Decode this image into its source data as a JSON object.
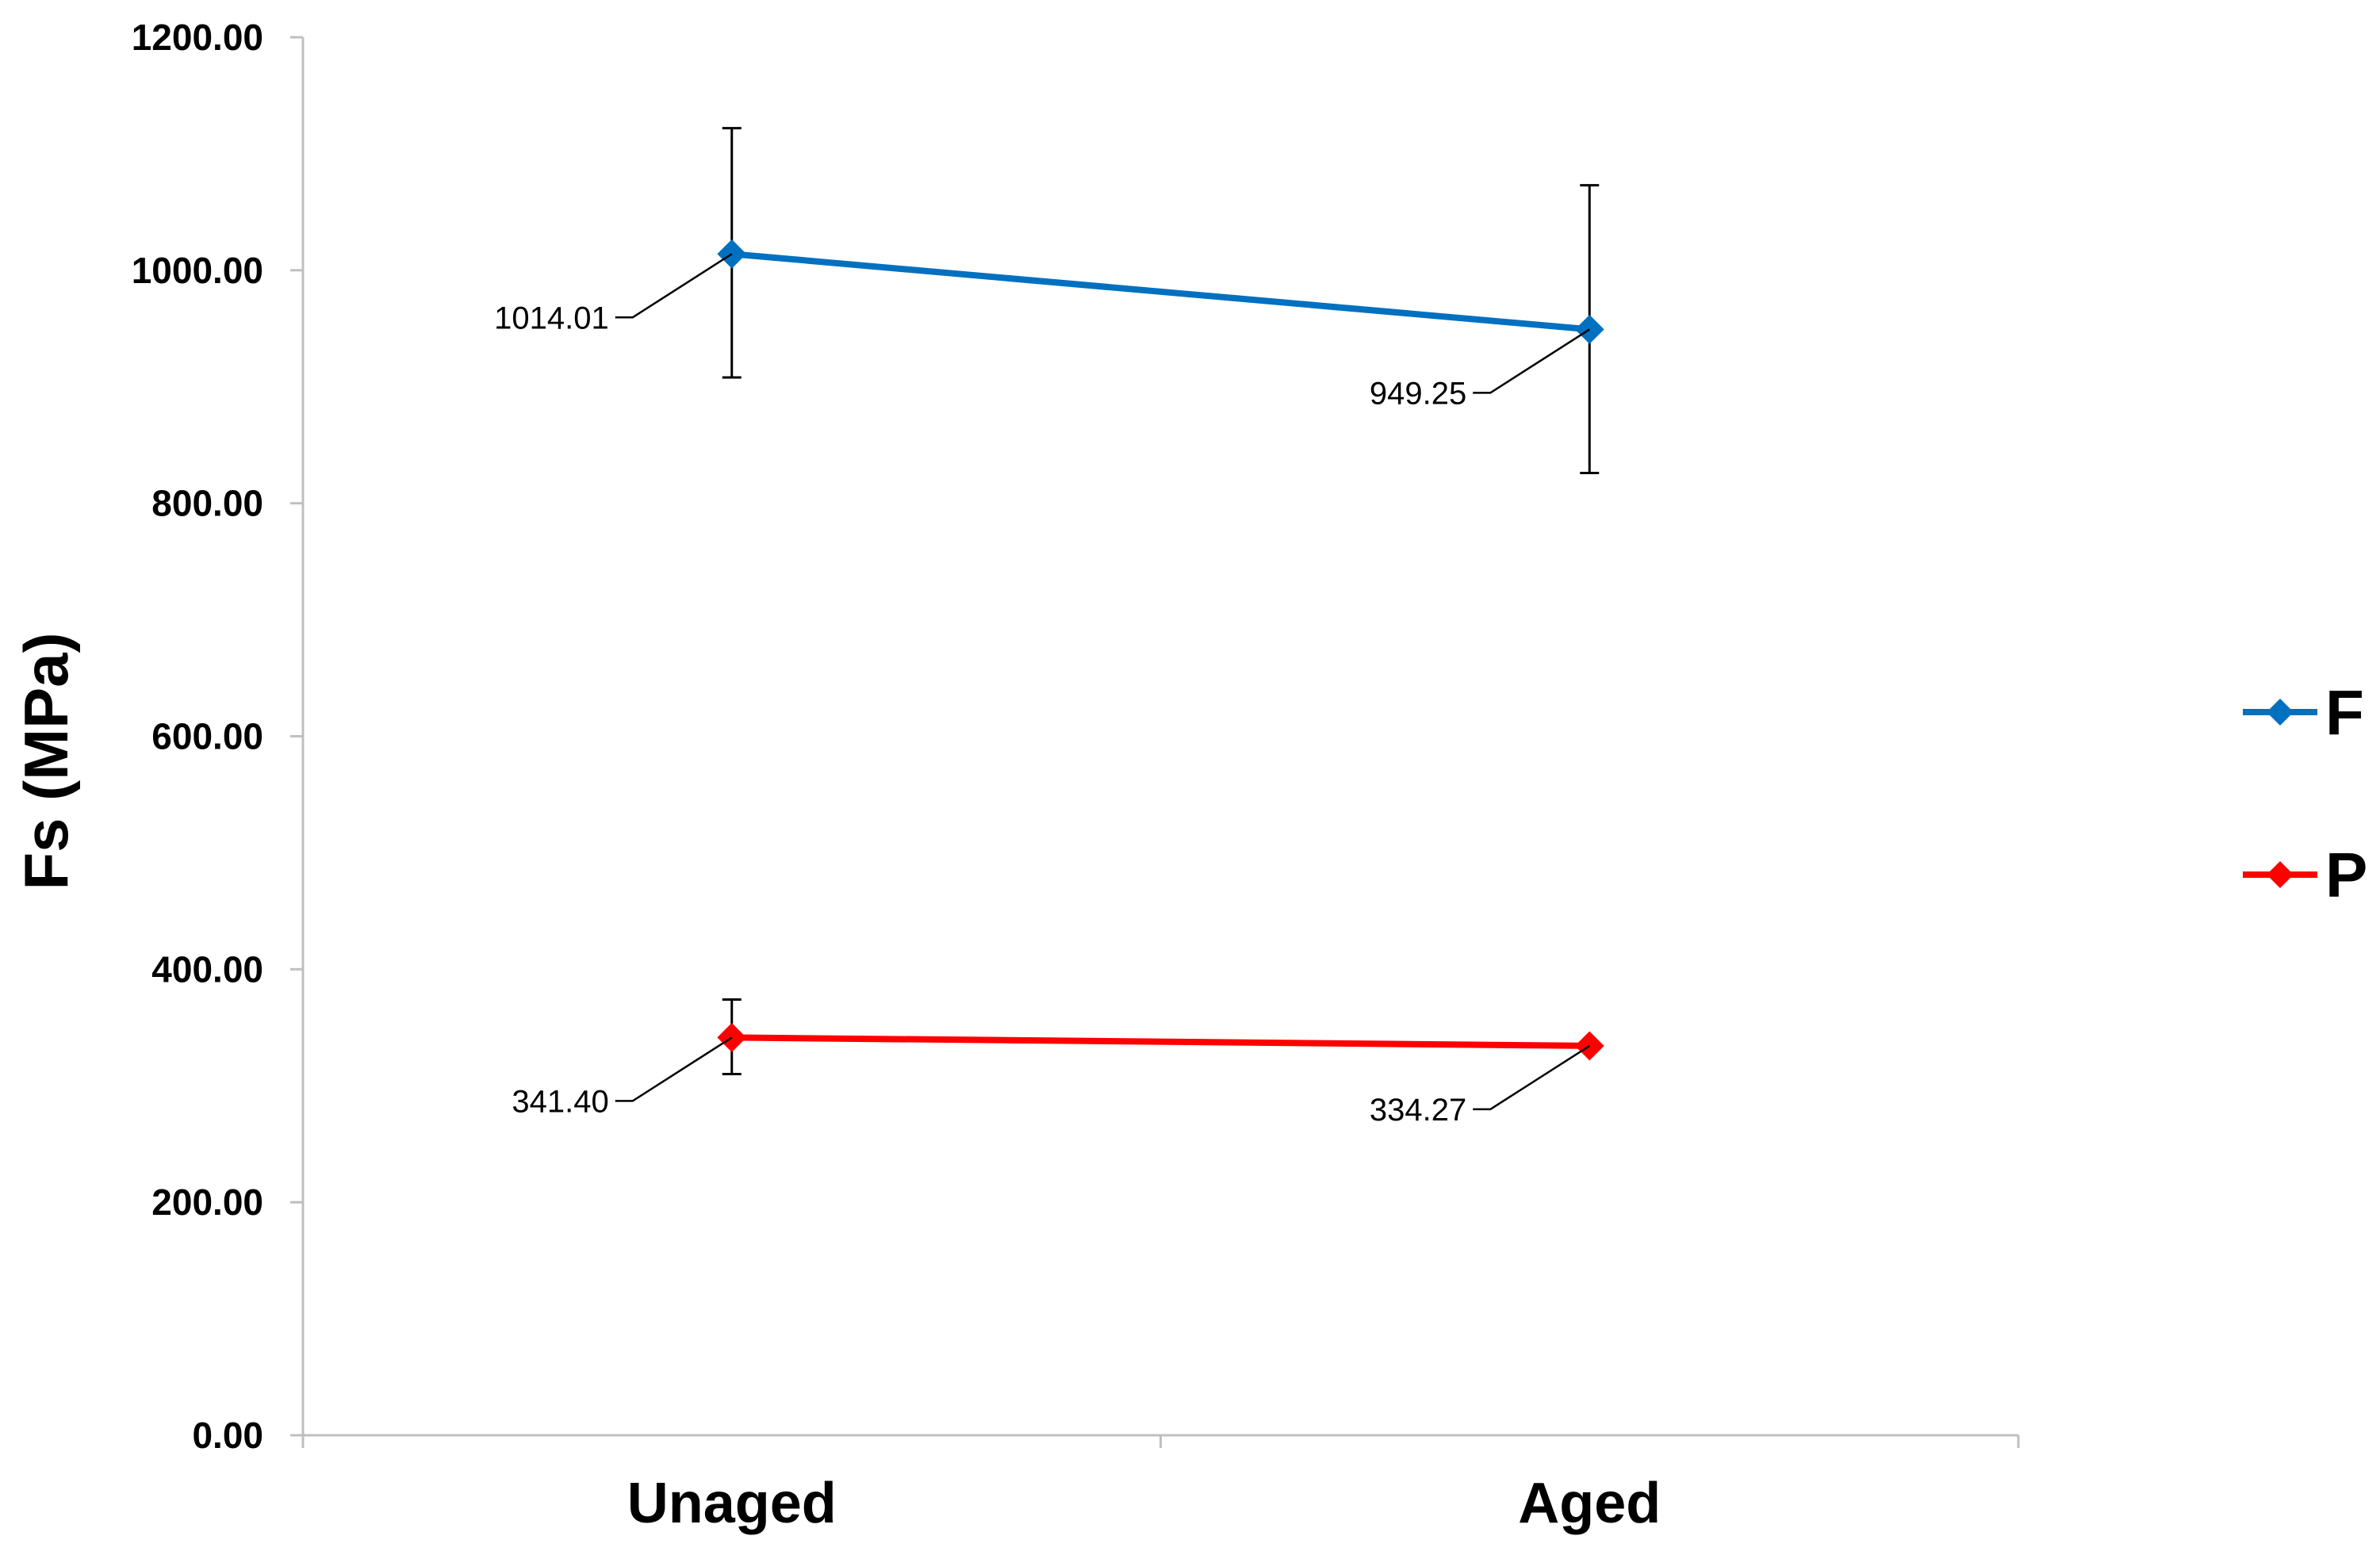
{
  "chart_data": {
    "type": "line",
    "categories": [
      "Unaged",
      "Aged"
    ],
    "ylabel": "Fs (MPa)",
    "xlabel": "",
    "ylim": [
      0,
      1200
    ],
    "yticks": [
      "0.00",
      "200.00",
      "400.00",
      "600.00",
      "800.00",
      "1000.00",
      "1200.00"
    ],
    "grid": false,
    "legend_position": "right",
    "series": [
      {
        "name": "F",
        "color": "#0070C0",
        "values": [
          1014.01,
          949.25
        ],
        "labels": [
          "1014.01",
          "949.25"
        ],
        "error_low": [
          908,
          826
        ],
        "error_high": [
          1122,
          1073
        ]
      },
      {
        "name": "P",
        "color": "#FF0000",
        "values": [
          341.4,
          334.27
        ],
        "labels": [
          "341.40",
          "334.27"
        ],
        "error_low": [
          310,
          334
        ],
        "error_high": [
          374,
          334
        ]
      }
    ]
  }
}
